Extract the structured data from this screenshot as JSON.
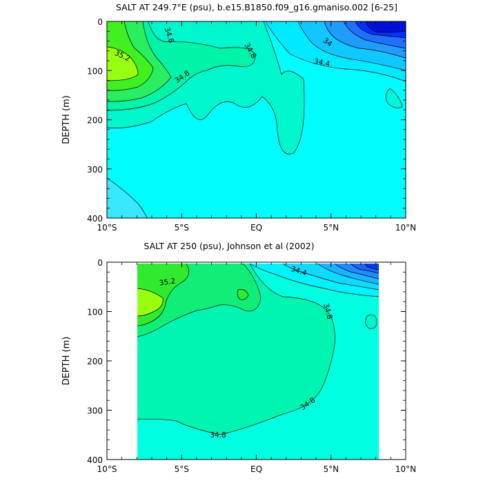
{
  "chart_data": [
    {
      "type": "contour",
      "title": "SALT AT 249.7°E (psu), b.e15.B1850.f09_g16.gmaniso.002 [6-25]",
      "xlabel": "",
      "ylabel": "DEPTH (m)",
      "xlim": [
        -10,
        10
      ],
      "ylim": [
        400,
        0
      ],
      "x_ticks": [
        -10,
        -5,
        0,
        5,
        10
      ],
      "x_tick_labels": [
        "10°S",
        "5°S",
        "EQ",
        "5°N",
        "10°N"
      ],
      "y_ticks": [
        0,
        100,
        200,
        300,
        400
      ],
      "y_tick_labels": [
        "0",
        "100",
        "200",
        "300",
        "400"
      ],
      "contour_interval": 0.2,
      "contour_labels": [
        "34.8",
        "35.2",
        "34.8",
        "34.8",
        "34",
        "34.4"
      ],
      "colors": {
        "fresh": "#0010e0",
        "mid": "#00ffff",
        "salty": "#90ff00"
      }
    },
    {
      "type": "contour",
      "title": "SALT AT 250 (psu), Johnson et al (2002)",
      "xlabel": "",
      "ylabel": "DEPTH (m)",
      "xlim": [
        -10,
        10
      ],
      "ylim": [
        400,
        0
      ],
      "data_xrange": [
        -8,
        8.3
      ],
      "data_yrange": [
        10,
        400
      ],
      "x_ticks": [
        -10,
        -5,
        0,
        5,
        10
      ],
      "x_tick_labels": [
        "10°S",
        "5°S",
        "EQ",
        "5°N",
        "10°N"
      ],
      "y_ticks": [
        0,
        100,
        200,
        300,
        400
      ],
      "y_tick_labels": [
        "0",
        "100",
        "200",
        "300",
        "400"
      ],
      "contour_interval": 0.2,
      "contour_labels": [
        "35.2",
        "34.4",
        "34.8",
        "34.8",
        "34.8"
      ],
      "colors": {
        "fresh": "#0030e0",
        "mid": "#00ffe0",
        "salty": "#90ff00"
      }
    }
  ]
}
